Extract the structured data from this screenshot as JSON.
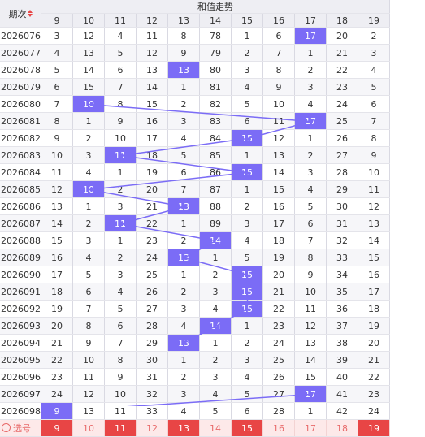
{
  "header": {
    "period_label": "期次",
    "group_title": "和值走势",
    "columns": [
      "9",
      "10",
      "11",
      "12",
      "13",
      "14",
      "15",
      "16",
      "17",
      "18",
      "19"
    ]
  },
  "rows": [
    {
      "period": "2026076",
      "cells": [
        "3",
        "12",
        "4",
        "11",
        "8",
        "78",
        "1",
        "6",
        "17",
        "20",
        "2"
      ],
      "hit": 8
    },
    {
      "period": "2026077",
      "cells": [
        "4",
        "13",
        "5",
        "12",
        "9",
        "79",
        "2",
        "7",
        "1",
        "21",
        "3"
      ],
      "hit": -1
    },
    {
      "period": "2026078",
      "cells": [
        "5",
        "14",
        "6",
        "13",
        "13",
        "80",
        "3",
        "8",
        "2",
        "22",
        "4"
      ],
      "hit": 4
    },
    {
      "period": "2026079",
      "cells": [
        "6",
        "15",
        "7",
        "14",
        "1",
        "81",
        "4",
        "9",
        "3",
        "23",
        "5"
      ],
      "hit": -1
    },
    {
      "period": "2026080",
      "cells": [
        "7",
        "10",
        "8",
        "15",
        "2",
        "82",
        "5",
        "10",
        "4",
        "24",
        "6"
      ],
      "hit": 1
    },
    {
      "period": "2026081",
      "cells": [
        "8",
        "1",
        "9",
        "16",
        "3",
        "83",
        "6",
        "11",
        "17",
        "25",
        "7"
      ],
      "hit": 8
    },
    {
      "period": "2026082",
      "cells": [
        "9",
        "2",
        "10",
        "17",
        "4",
        "84",
        "15",
        "12",
        "1",
        "26",
        "8"
      ],
      "hit": 6
    },
    {
      "period": "2026083",
      "cells": [
        "10",
        "3",
        "11",
        "18",
        "5",
        "85",
        "1",
        "13",
        "2",
        "27",
        "9"
      ],
      "hit": 2
    },
    {
      "period": "2026084",
      "cells": [
        "11",
        "4",
        "1",
        "19",
        "6",
        "86",
        "15",
        "14",
        "3",
        "28",
        "10"
      ],
      "hit": 6
    },
    {
      "period": "2026085",
      "cells": [
        "12",
        "10",
        "2",
        "20",
        "7",
        "87",
        "1",
        "15",
        "4",
        "29",
        "11"
      ],
      "hit": 1
    },
    {
      "period": "2026086",
      "cells": [
        "13",
        "1",
        "3",
        "21",
        "13",
        "88",
        "2",
        "16",
        "5",
        "30",
        "12"
      ],
      "hit": 4
    },
    {
      "period": "2026087",
      "cells": [
        "14",
        "2",
        "11",
        "22",
        "1",
        "89",
        "3",
        "17",
        "6",
        "31",
        "13"
      ],
      "hit": 2
    },
    {
      "period": "2026088",
      "cells": [
        "15",
        "3",
        "1",
        "23",
        "2",
        "14",
        "4",
        "18",
        "7",
        "32",
        "14"
      ],
      "hit": 5
    },
    {
      "period": "2026089",
      "cells": [
        "16",
        "4",
        "2",
        "24",
        "13",
        "1",
        "5",
        "19",
        "8",
        "33",
        "15"
      ],
      "hit": 4
    },
    {
      "period": "2026090",
      "cells": [
        "17",
        "5",
        "3",
        "25",
        "1",
        "2",
        "15",
        "20",
        "9",
        "34",
        "16"
      ],
      "hit": 6
    },
    {
      "period": "2026091",
      "cells": [
        "18",
        "6",
        "4",
        "26",
        "2",
        "3",
        "15",
        "21",
        "10",
        "35",
        "17"
      ],
      "hit": 6
    },
    {
      "period": "2026092",
      "cells": [
        "19",
        "7",
        "5",
        "27",
        "3",
        "4",
        "15",
        "22",
        "11",
        "36",
        "18"
      ],
      "hit": 6
    },
    {
      "period": "2026093",
      "cells": [
        "20",
        "8",
        "6",
        "28",
        "4",
        "14",
        "1",
        "23",
        "12",
        "37",
        "19"
      ],
      "hit": 5
    },
    {
      "period": "2026094",
      "cells": [
        "21",
        "9",
        "7",
        "29",
        "13",
        "1",
        "2",
        "24",
        "13",
        "38",
        "20"
      ],
      "hit": 4
    },
    {
      "period": "2026095",
      "cells": [
        "22",
        "10",
        "8",
        "30",
        "1",
        "2",
        "3",
        "25",
        "14",
        "39",
        "21"
      ],
      "hit": -1
    },
    {
      "period": "2026096",
      "cells": [
        "23",
        "11",
        "9",
        "31",
        "2",
        "3",
        "4",
        "26",
        "15",
        "40",
        "22"
      ],
      "hit": -1
    },
    {
      "period": "2026097",
      "cells": [
        "24",
        "12",
        "10",
        "32",
        "3",
        "4",
        "5",
        "27",
        "17",
        "41",
        "23"
      ],
      "hit": 8
    },
    {
      "period": "2026098",
      "cells": [
        "9",
        "13",
        "11",
        "33",
        "4",
        "5",
        "6",
        "28",
        "1",
        "42",
        "24"
      ],
      "hit": 0
    }
  ],
  "select_row": {
    "label": "选号",
    "cells": [
      "9",
      "10",
      "11",
      "12",
      "13",
      "14",
      "15",
      "16",
      "17",
      "18",
      "19"
    ],
    "selected": [
      0,
      2,
      4,
      6,
      10
    ]
  },
  "colors": {
    "highlight": "#7b6cf6",
    "trend_line": "#7b6cf6",
    "select_line": "#1fc28a",
    "select_highlight": "#e84545"
  }
}
